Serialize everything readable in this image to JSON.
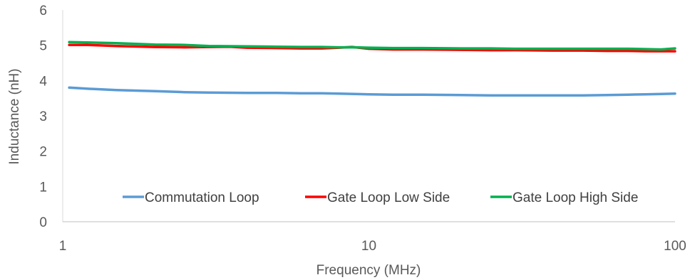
{
  "chart_data": {
    "type": "line",
    "title": "",
    "xlabel": "Frequency (MHz)",
    "ylabel": "Inductance (nH)",
    "xscale": "log",
    "xlim": [
      1,
      100
    ],
    "ylim": [
      0,
      6
    ],
    "x_ticks": [
      1,
      10,
      100
    ],
    "x_tick_labels": [
      "1",
      "10",
      "100"
    ],
    "y_ticks": [
      0,
      1,
      2,
      3,
      4,
      5,
      6
    ],
    "y_tick_labels": [
      "0",
      "1",
      "2",
      "3",
      "4",
      "5",
      "6"
    ],
    "grid": false,
    "legend_position": "bottom-inside",
    "series": [
      {
        "name": "Commutation Loop",
        "color": "#5B9BD5",
        "x": [
          1.05,
          1.2,
          1.5,
          2.0,
          2.5,
          3.0,
          4.0,
          5.0,
          6.0,
          7.0,
          8.0,
          9.0,
          10.0,
          12.0,
          15.0,
          20.0,
          25.0,
          30.0,
          40.0,
          50.0,
          60.0,
          70.0,
          80.0,
          90.0,
          100.0
        ],
        "y": [
          3.8,
          3.77,
          3.73,
          3.7,
          3.67,
          3.66,
          3.65,
          3.65,
          3.64,
          3.64,
          3.63,
          3.62,
          3.61,
          3.6,
          3.6,
          3.59,
          3.58,
          3.58,
          3.58,
          3.58,
          3.59,
          3.6,
          3.61,
          3.62,
          3.63
        ]
      },
      {
        "name": "Gate Loop Low Side",
        "color": "#FF0000",
        "x": [
          1.05,
          1.2,
          1.5,
          2.0,
          2.5,
          3.0,
          3.5,
          4.0,
          5.0,
          6.0,
          7.0,
          8.0,
          8.8,
          10.0,
          12.0,
          15.0,
          20.0,
          25.0,
          30.0,
          40.0,
          50.0,
          60.0,
          70.0,
          80.0,
          90.0,
          100.0
        ],
        "y": [
          5.01,
          5.01,
          4.98,
          4.95,
          4.94,
          4.95,
          4.96,
          4.93,
          4.92,
          4.91,
          4.91,
          4.93,
          4.95,
          4.9,
          4.88,
          4.88,
          4.87,
          4.86,
          4.86,
          4.85,
          4.85,
          4.84,
          4.84,
          4.83,
          4.83,
          4.83
        ]
      },
      {
        "name": "Gate Loop High Side",
        "color": "#00B050",
        "x": [
          1.05,
          1.2,
          1.5,
          2.0,
          2.5,
          3.0,
          4.0,
          5.0,
          6.0,
          7.0,
          8.0,
          9.0,
          10.0,
          12.0,
          15.0,
          20.0,
          25.0,
          30.0,
          40.0,
          50.0,
          60.0,
          70.0,
          80.0,
          90.0,
          100.0
        ],
        "y": [
          5.09,
          5.08,
          5.06,
          5.02,
          5.01,
          4.98,
          4.97,
          4.96,
          4.95,
          4.95,
          4.94,
          4.94,
          4.93,
          4.92,
          4.92,
          4.91,
          4.91,
          4.9,
          4.9,
          4.9,
          4.9,
          4.9,
          4.89,
          4.88,
          4.91
        ]
      }
    ]
  }
}
